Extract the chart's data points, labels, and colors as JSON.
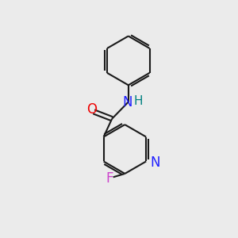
{
  "background_color": "#ebebeb",
  "bond_color": "#1a1a1a",
  "N_color": "#2020ff",
  "O_color": "#ee0000",
  "F_color": "#cc44cc",
  "H_color": "#008080",
  "line_width": 1.5,
  "font_size": 11,
  "figsize": [
    3.0,
    3.0
  ],
  "dpi": 100,
  "xlim": [
    0,
    10
  ],
  "ylim": [
    0,
    10
  ]
}
